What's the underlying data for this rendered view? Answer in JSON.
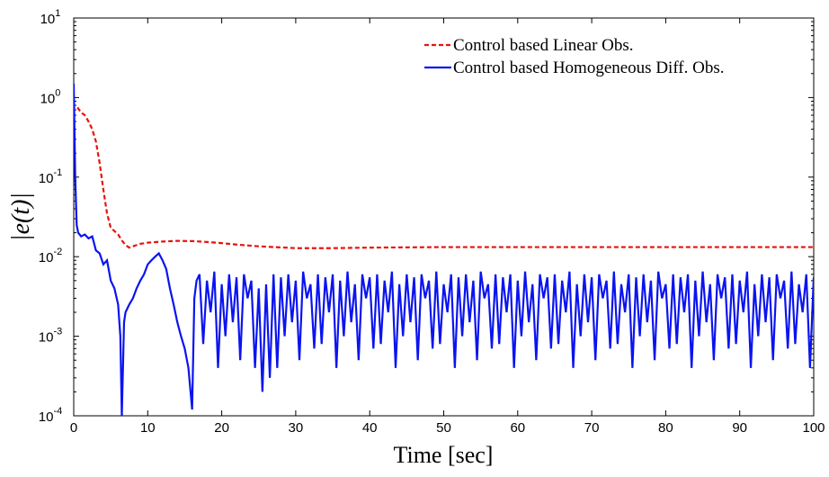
{
  "chart_data": {
    "type": "line",
    "x_label": "Time [sec]",
    "y_label": "|e(t)|",
    "log_y": true,
    "legend": "northeast",
    "xlim": [
      0,
      100
    ],
    "xticks": [
      0,
      10,
      20,
      30,
      40,
      50,
      60,
      70,
      80,
      90,
      100
    ],
    "ylim": [
      0.0001,
      10
    ],
    "yticks": [
      {
        "value": 0.0001,
        "label": "10",
        "power": "-4"
      },
      {
        "value": 0.001,
        "label": "10",
        "power": "-3"
      },
      {
        "value": 0.01,
        "label": "10",
        "power": "-2"
      },
      {
        "value": 0.1,
        "label": "10",
        "power": "-1"
      },
      {
        "value": 1,
        "label": "10",
        "power": "0"
      },
      {
        "value": 10,
        "label": "10",
        "power": "1"
      }
    ],
    "series": [
      {
        "name": "Control based Linear Obs.",
        "color": "#e8120c",
        "dash": true,
        "x": [
          0.5,
          1,
          1.5,
          2,
          2.5,
          3,
          3.5,
          4,
          4.5,
          5,
          5.5,
          6,
          6.5,
          7,
          7.5,
          8,
          9,
          10,
          12,
          14,
          16,
          18,
          20,
          22,
          25,
          30,
          35,
          40,
          50,
          60,
          70,
          80,
          90,
          100
        ],
        "values": [
          0.75,
          0.65,
          0.6,
          0.5,
          0.4,
          0.28,
          0.15,
          0.07,
          0.035,
          0.023,
          0.021,
          0.019,
          0.016,
          0.014,
          0.013,
          0.0135,
          0.0145,
          0.015,
          0.0155,
          0.0158,
          0.0157,
          0.0153,
          0.0148,
          0.0142,
          0.0135,
          0.0128,
          0.0128,
          0.013,
          0.0132,
          0.0132,
          0.0132,
          0.0132,
          0.0132,
          0.0132
        ]
      },
      {
        "name": "Control based Homogeneous Diff. Obs.",
        "color": "#0a14f0",
        "dash": false,
        "x": [
          0,
          0.2,
          0.4,
          0.6,
          1,
          1.5,
          2,
          2.5,
          3,
          3.5,
          4,
          4.5,
          5,
          5.5,
          6,
          6.3,
          6.5,
          6.8,
          7,
          7.5,
          8,
          8.5,
          9,
          9.5,
          10,
          10.5,
          11,
          11.5,
          12,
          12.5,
          13,
          13.5,
          14,
          14.5,
          15,
          15.5,
          16,
          16.3,
          16.6,
          17,
          17.5,
          18,
          18.5,
          19,
          19.5,
          20,
          20.5,
          21,
          21.5,
          22,
          22.5,
          23,
          23.5,
          24,
          24.5,
          25,
          25.5,
          26,
          26.5,
          27,
          27.5,
          28,
          28.5,
          29,
          29.5,
          30,
          30.5,
          31,
          31.5,
          32,
          32.5,
          33,
          33.5,
          34,
          34.5,
          35,
          35.5,
          36,
          36.5,
          37,
          37.5,
          38,
          38.5,
          39,
          39.5,
          40,
          40.5,
          41,
          41.5,
          42,
          42.5,
          43,
          43.5,
          44,
          44.5,
          45,
          45.5,
          46,
          46.5,
          47,
          47.5,
          48,
          48.5,
          49,
          49.5,
          50,
          50.5,
          51,
          51.5,
          52,
          52.5,
          53,
          53.5,
          54,
          54.5,
          55,
          55.5,
          56,
          56.5,
          57,
          57.5,
          58,
          58.5,
          59,
          59.5,
          60,
          60.5,
          61,
          61.5,
          62,
          62.5,
          63,
          63.5,
          64,
          64.5,
          65,
          65.5,
          66,
          66.5,
          67,
          67.5,
          68,
          68.5,
          69,
          69.5,
          70,
          70.5,
          71,
          71.5,
          72,
          72.5,
          73,
          73.5,
          74,
          74.5,
          75,
          75.5,
          76,
          76.5,
          77,
          77.5,
          78,
          78.5,
          79,
          79.5,
          80,
          80.5,
          81,
          81.5,
          82,
          82.5,
          83,
          83.5,
          84,
          84.5,
          85,
          85.5,
          86,
          86.5,
          87,
          87.5,
          88,
          88.5,
          89,
          89.5,
          90,
          90.5,
          91,
          91.5,
          92,
          92.5,
          93,
          93.5,
          94,
          94.5,
          95,
          95.5,
          96,
          96.5,
          97,
          97.5,
          98,
          98.5,
          99,
          99.5,
          100
        ],
        "values": [
          1.5,
          0.1,
          0.025,
          0.02,
          0.018,
          0.019,
          0.017,
          0.018,
          0.012,
          0.011,
          0.008,
          0.009,
          0.005,
          0.004,
          0.0025,
          0.001,
          0.0001,
          0.0015,
          0.002,
          0.0025,
          0.003,
          0.004,
          0.005,
          0.006,
          0.008,
          0.009,
          0.01,
          0.011,
          0.009,
          0.007,
          0.004,
          0.0025,
          0.0015,
          0.001,
          0.0007,
          0.0004,
          0.00012,
          0.003,
          0.005,
          0.006,
          0.0008,
          0.005,
          0.002,
          0.0065,
          0.0004,
          0.0045,
          0.001,
          0.006,
          0.0015,
          0.0055,
          0.0005,
          0.006,
          0.003,
          0.005,
          0.0004,
          0.004,
          0.0002,
          0.0045,
          0.0003,
          0.006,
          0.0004,
          0.0055,
          0.001,
          0.006,
          0.0015,
          0.005,
          0.0005,
          0.0065,
          0.003,
          0.0045,
          0.0007,
          0.006,
          0.0008,
          0.0055,
          0.002,
          0.006,
          0.0004,
          0.005,
          0.001,
          0.0065,
          0.0015,
          0.0045,
          0.0005,
          0.006,
          0.003,
          0.0055,
          0.0007,
          0.006,
          0.0008,
          0.005,
          0.002,
          0.0065,
          0.0004,
          0.0045,
          0.001,
          0.006,
          0.0015,
          0.0055,
          0.0005,
          0.006,
          0.003,
          0.005,
          0.0007,
          0.0065,
          0.0008,
          0.0045,
          0.002,
          0.006,
          0.0004,
          0.0055,
          0.001,
          0.006,
          0.0015,
          0.005,
          0.0005,
          0.0065,
          0.003,
          0.0045,
          0.0007,
          0.006,
          0.0008,
          0.0055,
          0.002,
          0.006,
          0.0004,
          0.005,
          0.001,
          0.0065,
          0.0015,
          0.0045,
          0.0005,
          0.006,
          0.003,
          0.0055,
          0.0007,
          0.006,
          0.0008,
          0.005,
          0.002,
          0.0065,
          0.0004,
          0.0045,
          0.001,
          0.006,
          0.0015,
          0.0055,
          0.0005,
          0.006,
          0.003,
          0.005,
          0.0007,
          0.0065,
          0.0008,
          0.0045,
          0.002,
          0.006,
          0.0004,
          0.0055,
          0.001,
          0.006,
          0.0015,
          0.005,
          0.0005,
          0.0065,
          0.003,
          0.0045,
          0.0007,
          0.006,
          0.0008,
          0.0055,
          0.002,
          0.006,
          0.0004,
          0.005,
          0.001,
          0.0065,
          0.0015,
          0.0045,
          0.0005,
          0.006,
          0.003,
          0.0055,
          0.0007,
          0.006,
          0.0008,
          0.005,
          0.002,
          0.0065,
          0.0004,
          0.0045,
          0.001,
          0.006,
          0.0015,
          0.0055,
          0.0005,
          0.006,
          0.003,
          0.005,
          0.0007,
          0.0065,
          0.0008,
          0.0045,
          0.002,
          0.006,
          0.0004,
          0.0055
        ]
      }
    ]
  }
}
